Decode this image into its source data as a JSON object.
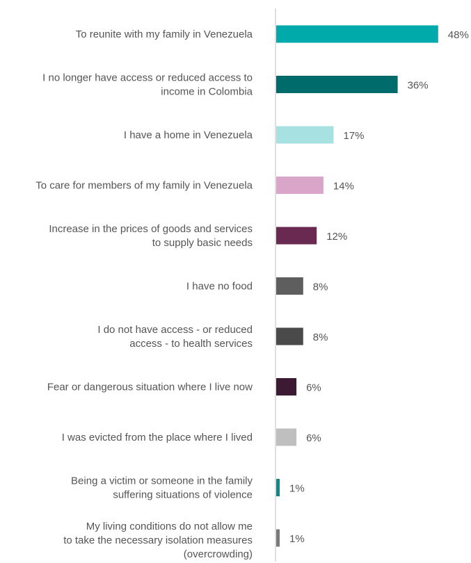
{
  "chart_data": {
    "type": "bar",
    "orientation": "horizontal",
    "title": "",
    "xlabel": "",
    "ylabel": "",
    "xlim": [
      0,
      50
    ],
    "grid": false,
    "legend": "none",
    "value_suffix": "%",
    "categories": [
      [
        "To reunite with my family in Venezuela"
      ],
      [
        "I no longer have access or reduced access to",
        "income in Colombia"
      ],
      [
        "I have a home in Venezuela"
      ],
      [
        "To care for members of my family in Venezuela"
      ],
      [
        "Increase in the prices of goods and services",
        "to supply basic needs"
      ],
      [
        "I have no food"
      ],
      [
        "I do not have access - or reduced",
        "access - to health services"
      ],
      [
        "Fear or dangerous situation where I live now"
      ],
      [
        "I was evicted from the place where I lived"
      ],
      [
        "Being a victim or someone in the family",
        "suffering situations of violence"
      ],
      [
        "My living conditions do not allow me",
        "to take the necessary isolation measures",
        "(overcrowding)"
      ]
    ],
    "values": [
      48,
      36,
      17,
      14,
      12,
      8,
      8,
      6,
      6,
      1,
      1
    ],
    "value_labels": [
      "48%",
      "36%",
      "17%",
      "14%",
      "12%",
      "8%",
      "8%",
      "6%",
      "6%",
      "1%",
      "1%"
    ],
    "colors": [
      "#00AAAA",
      "#006B6B",
      "#A7E1E1",
      "#D9A6C9",
      "#6A2951",
      "#5E5E5E",
      "#4A4A4A",
      "#3D1A33",
      "#BFBFBF",
      "#008C8C",
      "#7A7A7A"
    ],
    "axis_color": "#BFBFBF"
  }
}
